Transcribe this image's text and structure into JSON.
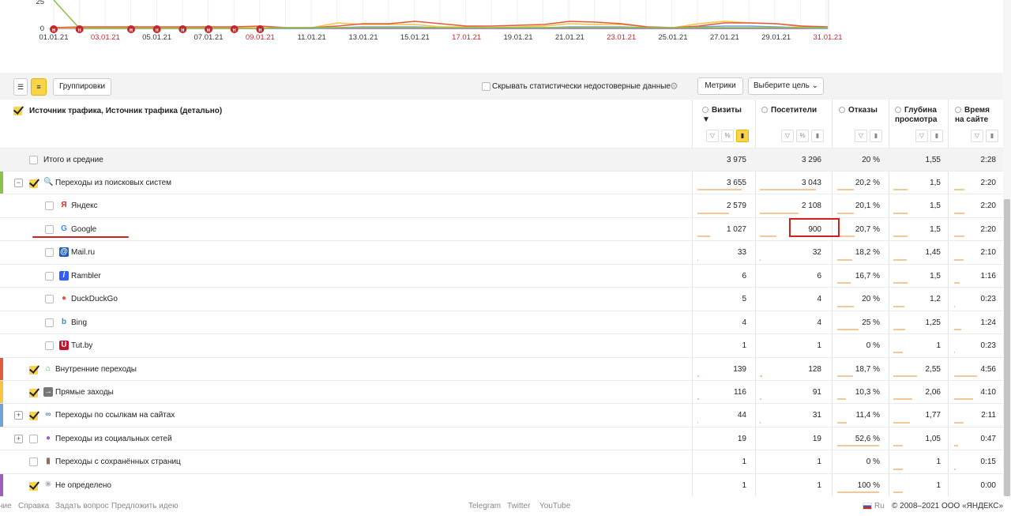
{
  "chart": {
    "y_ticks": [
      "25",
      "0"
    ],
    "x_labels": [
      {
        "text": "01.01.21",
        "red": false
      },
      {
        "text": "03.01.21",
        "red": true
      },
      {
        "text": "05.01.21",
        "red": false
      },
      {
        "text": "07.01.21",
        "red": false
      },
      {
        "text": "09.01.21",
        "red": true
      },
      {
        "text": "11.01.21",
        "red": false
      },
      {
        "text": "13.01.21",
        "red": false
      },
      {
        "text": "15.01.21",
        "red": false
      },
      {
        "text": "17.01.21",
        "red": true
      },
      {
        "text": "19.01.21",
        "red": false
      },
      {
        "text": "21.01.21",
        "red": false
      },
      {
        "text": "23.01.21",
        "red": true
      },
      {
        "text": "25.01.21",
        "red": false
      },
      {
        "text": "27.01.21",
        "red": false
      },
      {
        "text": "29.01.21",
        "red": false
      },
      {
        "text": "31.01.21",
        "red": true
      }
    ],
    "holiday_marker": "н",
    "holiday_marker_count": 8,
    "colors": {
      "green": "#8bc34a",
      "red": "#e15b3f",
      "yellow": "#f6c343",
      "blue": "#6fa3d9",
      "purple": "#9c5fc0"
    }
  },
  "toolbar": {
    "group_label": "Группировки",
    "hide_stats_label": "Скрывать статистически недостоверные данные",
    "metrics_label": "Метрики",
    "goal_label": "Выберите цель"
  },
  "table": {
    "dimension_header": "Источник трафика, Источник трафика (детально)",
    "columns": [
      {
        "label": "Визиты",
        "sort": "▼"
      },
      {
        "label": "Посетители",
        "sort": ""
      },
      {
        "label": "Отказы",
        "sort": ""
      },
      {
        "label": "Глубина просмотра",
        "sort": ""
      },
      {
        "label": "Время на сайте",
        "sort": ""
      }
    ],
    "rows": [
      {
        "label": "Итого и средние",
        "kind": "total",
        "values": [
          "3 975",
          "3 296",
          "20 %",
          "1,55",
          "2:28"
        ]
      },
      {
        "label": "Переходы из поисковых систем",
        "kind": "group",
        "checked": true,
        "expander": "−",
        "stripe": "#8bc34a",
        "icon": "search-icon",
        "values": [
          "3 655",
          "3 043",
          "20,2 %",
          "1,5",
          "2:20"
        ]
      },
      {
        "label": "Яндекс",
        "kind": "child",
        "icon": "yandex-icon",
        "values": [
          "2 579",
          "2 108",
          "20,1 %",
          "1,5",
          "2:20"
        ]
      },
      {
        "label": "Google",
        "kind": "child",
        "icon": "google-icon",
        "values": [
          "1 027",
          "900",
          "20,7 %",
          "1,5",
          "2:20"
        ]
      },
      {
        "label": "Mail.ru",
        "kind": "child",
        "icon": "mailru-icon",
        "values": [
          "33",
          "32",
          "18,2 %",
          "1,45",
          "2:10"
        ]
      },
      {
        "label": "Rambler",
        "kind": "child",
        "icon": "rambler-icon",
        "values": [
          "6",
          "6",
          "16,7 %",
          "1,5",
          "1:16"
        ]
      },
      {
        "label": "DuckDuckGo",
        "kind": "child",
        "icon": "duckduckgo-icon",
        "values": [
          "5",
          "4",
          "20 %",
          "1,2",
          "0:23"
        ]
      },
      {
        "label": "Bing",
        "kind": "child",
        "icon": "bing-icon",
        "values": [
          "4",
          "4",
          "25 %",
          "1,25",
          "1:24"
        ]
      },
      {
        "label": "Tut.by",
        "kind": "child",
        "icon": "tutby-icon",
        "values": [
          "1",
          "1",
          "0 %",
          "1",
          "0:23"
        ]
      },
      {
        "label": "Внутренние переходы",
        "kind": "group",
        "checked": true,
        "stripe": "#e15b3f",
        "icon": "home-icon",
        "values": [
          "139",
          "128",
          "18,7 %",
          "2,55",
          "4:56"
        ]
      },
      {
        "label": "Прямые заходы",
        "kind": "group",
        "checked": true,
        "stripe": "#f6c343",
        "icon": "direct-icon",
        "values": [
          "116",
          "91",
          "10,3 %",
          "2,06",
          "4:10"
        ]
      },
      {
        "label": "Переходы по ссылкам на сайтах",
        "kind": "group",
        "checked": true,
        "expander": "+",
        "stripe": "#6fa3d9",
        "icon": "link-icon",
        "values": [
          "44",
          "31",
          "11,4 %",
          "1,77",
          "2:11"
        ]
      },
      {
        "label": "Переходы из социальных сетей",
        "kind": "group",
        "checked": false,
        "expander": "+",
        "icon": "social-icon",
        "values": [
          "19",
          "19",
          "52,6 %",
          "1,05",
          "0:47"
        ]
      },
      {
        "label": "Переходы с сохранённых страниц",
        "kind": "group",
        "checked": false,
        "icon": "saved-page-icon",
        "values": [
          "1",
          "1",
          "0 %",
          "1",
          "0:15"
        ]
      },
      {
        "label": "Не определено",
        "kind": "group",
        "checked": true,
        "stripe": "#9c5fc0",
        "icon": "undefined-icon",
        "values": [
          "1",
          "1",
          "100 %",
          "1",
          "0:00"
        ]
      }
    ],
    "bar_fractions": [
      [
        0.92,
        0.92,
        0.4,
        0.3,
        0.25
      ],
      [
        0.65,
        0.64,
        0.4,
        0.3,
        0.25
      ],
      [
        0.26,
        0.27,
        0.41,
        0.3,
        0.25
      ],
      [
        0.01,
        0.01,
        0.36,
        0.29,
        0.24
      ],
      [
        0.0,
        0.0,
        0.33,
        0.3,
        0.14
      ],
      [
        0.0,
        0.0,
        0.4,
        0.24,
        0.02
      ],
      [
        0.0,
        0.0,
        0.5,
        0.25,
        0.17
      ],
      [
        0.0,
        0.0,
        0.0,
        0.2,
        0.02
      ],
      [
        0.035,
        0.04,
        0.37,
        0.51,
        0.56
      ],
      [
        0.03,
        0.03,
        0.21,
        0.41,
        0.47
      ],
      [
        0.01,
        0.01,
        0.23,
        0.35,
        0.24
      ],
      [
        0.005,
        0.006,
        1.0,
        0.21,
        0.09
      ],
      [
        0.0,
        0.0,
        0.0,
        0.2,
        0.03
      ],
      [
        0.0,
        0.0,
        1.0,
        0.2,
        0.0
      ]
    ]
  },
  "footer": {
    "left_links": [
      "ние",
      "Справка",
      "Задать вопрос",
      "Предложить идею"
    ],
    "social_links": [
      "Telegram",
      "Twitter",
      "YouTube"
    ],
    "lang": "Ru",
    "copyright": "© 2008–2021 ООО «ЯНДЕКС»"
  }
}
